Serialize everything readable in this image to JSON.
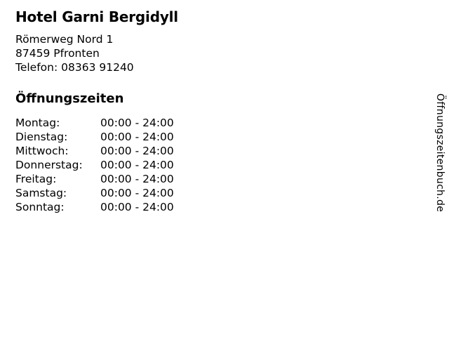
{
  "business": {
    "name": "Hotel Garni Bergidyll",
    "address_line1": "Römerweg Nord 1",
    "address_line2": "87459 Pfronten",
    "phone_line": "Telefon: 08363 91240"
  },
  "hours": {
    "heading": "Öffnungszeiten",
    "rows": [
      {
        "day": "Montag:",
        "time": "00:00 - 24:00"
      },
      {
        "day": "Dienstag:",
        "time": "00:00 - 24:00"
      },
      {
        "day": "Mittwoch:",
        "time": "00:00 - 24:00"
      },
      {
        "day": "Donnerstag:",
        "time": "00:00 - 24:00"
      },
      {
        "day": "Freitag:",
        "time": "00:00 - 24:00"
      },
      {
        "day": "Samstag:",
        "time": "00:00 - 24:00"
      },
      {
        "day": "Sonntag:",
        "time": "00:00 - 24:00"
      }
    ]
  },
  "watermark": {
    "text": "Öffnungszeitenbuch.de"
  },
  "colors": {
    "text": "#000000",
    "background": "#ffffff"
  }
}
